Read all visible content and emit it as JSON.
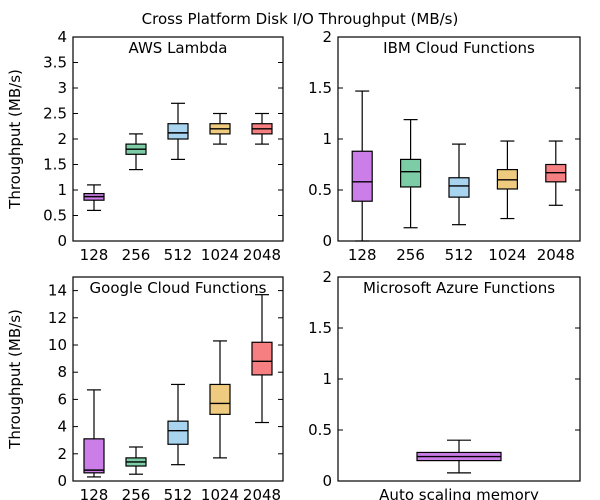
{
  "chart_data": {
    "title": "Cross Platform Disk I/O Throughput (MB/s)",
    "colors": [
      "#cc7ee8",
      "#7ccca5",
      "#a8d4f0",
      "#efcb7f",
      "#f57f81"
    ],
    "ylabel": "Throughput (MB/s)",
    "panels": [
      {
        "type": "box",
        "title": "AWS Lambda",
        "ylim": [
          0,
          4
        ],
        "yticks": [
          "0",
          "0.5",
          "1",
          "1.5",
          "2",
          "2.5",
          "3",
          "3.5",
          "4"
        ],
        "ytick_values": [
          0,
          0.5,
          1,
          1.5,
          2,
          2.5,
          3,
          3.5,
          4
        ],
        "show_ylabel": true,
        "categories": [
          "128",
          "256",
          "512",
          "1024",
          "2048"
        ],
        "boxes": [
          {
            "min": 0.6,
            "q1": 0.8,
            "median": 0.87,
            "q3": 0.93,
            "max": 1.1
          },
          {
            "min": 1.4,
            "q1": 1.7,
            "median": 1.8,
            "q3": 1.9,
            "max": 2.1
          },
          {
            "min": 1.6,
            "q1": 2.0,
            "median": 2.12,
            "q3": 2.3,
            "max": 2.7
          },
          {
            "min": 1.9,
            "q1": 2.1,
            "median": 2.2,
            "q3": 2.3,
            "max": 2.5
          },
          {
            "min": 1.9,
            "q1": 2.1,
            "median": 2.2,
            "q3": 2.3,
            "max": 2.5
          }
        ]
      },
      {
        "type": "box",
        "title": "IBM Cloud Functions",
        "ylim": [
          0,
          2
        ],
        "yticks": [
          "0",
          "0.5",
          "1",
          "1.5",
          "2"
        ],
        "ytick_values": [
          0,
          0.5,
          1,
          1.5,
          2
        ],
        "show_ylabel": false,
        "categories": [
          "128",
          "256",
          "512",
          "1024",
          "2048"
        ],
        "boxes": [
          {
            "min": 0.0,
            "q1": 0.39,
            "median": 0.58,
            "q3": 0.88,
            "max": 1.47
          },
          {
            "min": 0.13,
            "q1": 0.53,
            "median": 0.68,
            "q3": 0.8,
            "max": 1.19
          },
          {
            "min": 0.16,
            "q1": 0.43,
            "median": 0.54,
            "q3": 0.62,
            "max": 0.95
          },
          {
            "min": 0.22,
            "q1": 0.51,
            "median": 0.6,
            "q3": 0.7,
            "max": 0.98
          },
          {
            "min": 0.35,
            "q1": 0.58,
            "median": 0.67,
            "q3": 0.75,
            "max": 0.98
          }
        ]
      },
      {
        "type": "box",
        "title": "Google Cloud Functions",
        "ylim": [
          0,
          15
        ],
        "yticks": [
          "0",
          "2",
          "4",
          "6",
          "8",
          "10",
          "12",
          "14"
        ],
        "ytick_values": [
          0,
          2,
          4,
          6,
          8,
          10,
          12,
          14
        ],
        "show_ylabel": true,
        "categories": [
          "128",
          "256",
          "512",
          "1024",
          "2048"
        ],
        "boxes": [
          {
            "min": 0.3,
            "q1": 0.6,
            "median": 0.8,
            "q3": 3.1,
            "max": 6.7
          },
          {
            "min": 0.5,
            "q1": 1.1,
            "median": 1.4,
            "q3": 1.7,
            "max": 2.5
          },
          {
            "min": 1.2,
            "q1": 2.7,
            "median": 3.7,
            "q3": 4.4,
            "max": 7.1
          },
          {
            "min": 1.7,
            "q1": 4.9,
            "median": 5.7,
            "q3": 7.1,
            "max": 10.3
          },
          {
            "min": 4.3,
            "q1": 7.8,
            "median": 8.8,
            "q3": 10.2,
            "max": 13.7
          }
        ]
      },
      {
        "type": "box",
        "title": "Microsoft Azure Functions",
        "ylim": [
          0,
          2
        ],
        "yticks": [
          "0",
          "0.5",
          "1",
          "1.5",
          "2"
        ],
        "ytick_values": [
          0,
          0.5,
          1,
          1.5,
          2
        ],
        "show_ylabel": false,
        "categories": [
          "Auto scaling memory"
        ],
        "box_color_index": 0,
        "boxes": [
          {
            "min": 0.08,
            "q1": 0.2,
            "median": 0.24,
            "q3": 0.28,
            "max": 0.4
          }
        ]
      }
    ]
  }
}
